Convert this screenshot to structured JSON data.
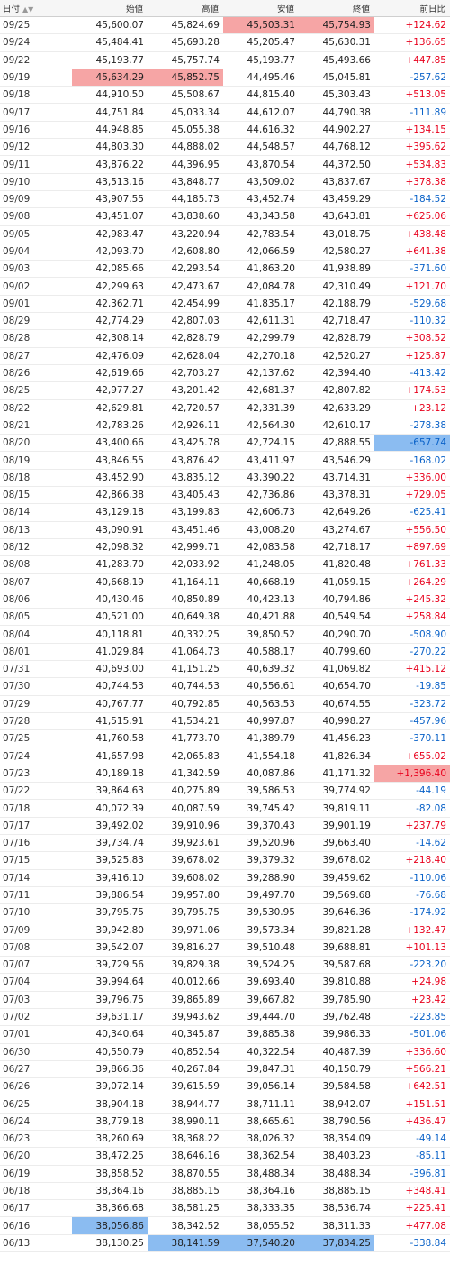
{
  "headers": {
    "date": "日付",
    "open": "始値",
    "high": "高値",
    "low": "安値",
    "close": "終値",
    "change": "前日比"
  },
  "colors": {
    "up": "#e8001c",
    "down": "#0a62c8",
    "highlight_high": "#f6a5a5",
    "highlight_low": "#8bbcf1"
  },
  "rows": [
    {
      "date": "09/25",
      "open": "45,600.07",
      "high": "45,824.69",
      "low": "45,503.31",
      "close": "45,754.93",
      "change": "+124.62",
      "hl": {
        "low": "red",
        "close": "red"
      }
    },
    {
      "date": "09/24",
      "open": "45,484.41",
      "high": "45,693.28",
      "low": "45,205.47",
      "close": "45,630.31",
      "change": "+136.65"
    },
    {
      "date": "09/22",
      "open": "45,193.77",
      "high": "45,757.74",
      "low": "45,193.77",
      "close": "45,493.66",
      "change": "+447.85"
    },
    {
      "date": "09/19",
      "open": "45,634.29",
      "high": "45,852.75",
      "low": "44,495.46",
      "close": "45,045.81",
      "change": "-257.62",
      "hl": {
        "open": "red",
        "high": "red"
      }
    },
    {
      "date": "09/18",
      "open": "44,910.50",
      "high": "45,508.67",
      "low": "44,815.40",
      "close": "45,303.43",
      "change": "+513.05"
    },
    {
      "date": "09/17",
      "open": "44,751.84",
      "high": "45,033.34",
      "low": "44,612.07",
      "close": "44,790.38",
      "change": "-111.89"
    },
    {
      "date": "09/16",
      "open": "44,948.85",
      "high": "45,055.38",
      "low": "44,616.32",
      "close": "44,902.27",
      "change": "+134.15"
    },
    {
      "date": "09/12",
      "open": "44,803.30",
      "high": "44,888.02",
      "low": "44,548.57",
      "close": "44,768.12",
      "change": "+395.62"
    },
    {
      "date": "09/11",
      "open": "43,876.22",
      "high": "44,396.95",
      "low": "43,870.54",
      "close": "44,372.50",
      "change": "+534.83"
    },
    {
      "date": "09/10",
      "open": "43,513.16",
      "high": "43,848.77",
      "low": "43,509.02",
      "close": "43,837.67",
      "change": "+378.38"
    },
    {
      "date": "09/09",
      "open": "43,907.55",
      "high": "44,185.73",
      "low": "43,452.74",
      "close": "43,459.29",
      "change": "-184.52"
    },
    {
      "date": "09/08",
      "open": "43,451.07",
      "high": "43,838.60",
      "low": "43,343.58",
      "close": "43,643.81",
      "change": "+625.06"
    },
    {
      "date": "09/05",
      "open": "42,983.47",
      "high": "43,220.94",
      "low": "42,783.54",
      "close": "43,018.75",
      "change": "+438.48"
    },
    {
      "date": "09/04",
      "open": "42,093.70",
      "high": "42,608.80",
      "low": "42,066.59",
      "close": "42,580.27",
      "change": "+641.38"
    },
    {
      "date": "09/03",
      "open": "42,085.66",
      "high": "42,293.54",
      "low": "41,863.20",
      "close": "41,938.89",
      "change": "-371.60"
    },
    {
      "date": "09/02",
      "open": "42,299.63",
      "high": "42,473.67",
      "low": "42,084.78",
      "close": "42,310.49",
      "change": "+121.70"
    },
    {
      "date": "09/01",
      "open": "42,362.71",
      "high": "42,454.99",
      "low": "41,835.17",
      "close": "42,188.79",
      "change": "-529.68"
    },
    {
      "date": "08/29",
      "open": "42,774.29",
      "high": "42,807.03",
      "low": "42,611.31",
      "close": "42,718.47",
      "change": "-110.32"
    },
    {
      "date": "08/28",
      "open": "42,308.14",
      "high": "42,828.79",
      "low": "42,299.79",
      "close": "42,828.79",
      "change": "+308.52"
    },
    {
      "date": "08/27",
      "open": "42,476.09",
      "high": "42,628.04",
      "low": "42,270.18",
      "close": "42,520.27",
      "change": "+125.87"
    },
    {
      "date": "08/26",
      "open": "42,619.66",
      "high": "42,703.27",
      "low": "42,137.62",
      "close": "42,394.40",
      "change": "-413.42"
    },
    {
      "date": "08/25",
      "open": "42,977.27",
      "high": "43,201.42",
      "low": "42,681.37",
      "close": "42,807.82",
      "change": "+174.53"
    },
    {
      "date": "08/22",
      "open": "42,629.81",
      "high": "42,720.57",
      "low": "42,331.39",
      "close": "42,633.29",
      "change": "+23.12"
    },
    {
      "date": "08/21",
      "open": "42,783.26",
      "high": "42,926.11",
      "low": "42,564.30",
      "close": "42,610.17",
      "change": "-278.38"
    },
    {
      "date": "08/20",
      "open": "43,400.66",
      "high": "43,425.78",
      "low": "42,724.15",
      "close": "42,888.55",
      "change": "-657.74",
      "hl": {
        "change": "blue"
      }
    },
    {
      "date": "08/19",
      "open": "43,846.55",
      "high": "43,876.42",
      "low": "43,411.97",
      "close": "43,546.29",
      "change": "-168.02"
    },
    {
      "date": "08/18",
      "open": "43,452.90",
      "high": "43,835.12",
      "low": "43,390.22",
      "close": "43,714.31",
      "change": "+336.00"
    },
    {
      "date": "08/15",
      "open": "42,866.38",
      "high": "43,405.43",
      "low": "42,736.86",
      "close": "43,378.31",
      "change": "+729.05"
    },
    {
      "date": "08/14",
      "open": "43,129.18",
      "high": "43,199.83",
      "low": "42,606.73",
      "close": "42,649.26",
      "change": "-625.41"
    },
    {
      "date": "08/13",
      "open": "43,090.91",
      "high": "43,451.46",
      "low": "43,008.20",
      "close": "43,274.67",
      "change": "+556.50"
    },
    {
      "date": "08/12",
      "open": "42,098.32",
      "high": "42,999.71",
      "low": "42,083.58",
      "close": "42,718.17",
      "change": "+897.69"
    },
    {
      "date": "08/08",
      "open": "41,283.70",
      "high": "42,033.92",
      "low": "41,248.05",
      "close": "41,820.48",
      "change": "+761.33"
    },
    {
      "date": "08/07",
      "open": "40,668.19",
      "high": "41,164.11",
      "low": "40,668.19",
      "close": "41,059.15",
      "change": "+264.29"
    },
    {
      "date": "08/06",
      "open": "40,430.46",
      "high": "40,850.89",
      "low": "40,423.13",
      "close": "40,794.86",
      "change": "+245.32"
    },
    {
      "date": "08/05",
      "open": "40,521.00",
      "high": "40,649.38",
      "low": "40,421.88",
      "close": "40,549.54",
      "change": "+258.84"
    },
    {
      "date": "08/04",
      "open": "40,118.81",
      "high": "40,332.25",
      "low": "39,850.52",
      "close": "40,290.70",
      "change": "-508.90"
    },
    {
      "date": "08/01",
      "open": "41,029.84",
      "high": "41,064.73",
      "low": "40,588.17",
      "close": "40,799.60",
      "change": "-270.22"
    },
    {
      "date": "07/31",
      "open": "40,693.00",
      "high": "41,151.25",
      "low": "40,639.32",
      "close": "41,069.82",
      "change": "+415.12"
    },
    {
      "date": "07/30",
      "open": "40,744.53",
      "high": "40,744.53",
      "low": "40,556.61",
      "close": "40,654.70",
      "change": "-19.85"
    },
    {
      "date": "07/29",
      "open": "40,767.77",
      "high": "40,792.85",
      "low": "40,563.53",
      "close": "40,674.55",
      "change": "-323.72"
    },
    {
      "date": "07/28",
      "open": "41,515.91",
      "high": "41,534.21",
      "low": "40,997.87",
      "close": "40,998.27",
      "change": "-457.96"
    },
    {
      "date": "07/25",
      "open": "41,760.58",
      "high": "41,773.70",
      "low": "41,389.79",
      "close": "41,456.23",
      "change": "-370.11"
    },
    {
      "date": "07/24",
      "open": "41,657.98",
      "high": "42,065.83",
      "low": "41,554.18",
      "close": "41,826.34",
      "change": "+655.02"
    },
    {
      "date": "07/23",
      "open": "40,189.18",
      "high": "41,342.59",
      "low": "40,087.86",
      "close": "41,171.32",
      "change": "+1,396.40",
      "hl": {
        "change": "red"
      }
    },
    {
      "date": "07/22",
      "open": "39,864.63",
      "high": "40,275.89",
      "low": "39,586.53",
      "close": "39,774.92",
      "change": "-44.19"
    },
    {
      "date": "07/18",
      "open": "40,072.39",
      "high": "40,087.59",
      "low": "39,745.42",
      "close": "39,819.11",
      "change": "-82.08"
    },
    {
      "date": "07/17",
      "open": "39,492.02",
      "high": "39,910.96",
      "low": "39,370.43",
      "close": "39,901.19",
      "change": "+237.79"
    },
    {
      "date": "07/16",
      "open": "39,734.74",
      "high": "39,923.61",
      "low": "39,520.96",
      "close": "39,663.40",
      "change": "-14.62"
    },
    {
      "date": "07/15",
      "open": "39,525.83",
      "high": "39,678.02",
      "low": "39,379.32",
      "close": "39,678.02",
      "change": "+218.40"
    },
    {
      "date": "07/14",
      "open": "39,416.10",
      "high": "39,608.02",
      "low": "39,288.90",
      "close": "39,459.62",
      "change": "-110.06"
    },
    {
      "date": "07/11",
      "open": "39,886.54",
      "high": "39,957.80",
      "low": "39,497.70",
      "close": "39,569.68",
      "change": "-76.68"
    },
    {
      "date": "07/10",
      "open": "39,795.75",
      "high": "39,795.75",
      "low": "39,530.95",
      "close": "39,646.36",
      "change": "-174.92"
    },
    {
      "date": "07/09",
      "open": "39,942.80",
      "high": "39,971.06",
      "low": "39,573.34",
      "close": "39,821.28",
      "change": "+132.47"
    },
    {
      "date": "07/08",
      "open": "39,542.07",
      "high": "39,816.27",
      "low": "39,510.48",
      "close": "39,688.81",
      "change": "+101.13"
    },
    {
      "date": "07/07",
      "open": "39,729.56",
      "high": "39,829.38",
      "low": "39,524.25",
      "close": "39,587.68",
      "change": "-223.20"
    },
    {
      "date": "07/04",
      "open": "39,994.64",
      "high": "40,012.66",
      "low": "39,693.40",
      "close": "39,810.88",
      "change": "+24.98"
    },
    {
      "date": "07/03",
      "open": "39,796.75",
      "high": "39,865.89",
      "low": "39,667.82",
      "close": "39,785.90",
      "change": "+23.42"
    },
    {
      "date": "07/02",
      "open": "39,631.17",
      "high": "39,943.62",
      "low": "39,444.70",
      "close": "39,762.48",
      "change": "-223.85"
    },
    {
      "date": "07/01",
      "open": "40,340.64",
      "high": "40,345.87",
      "low": "39,885.38",
      "close": "39,986.33",
      "change": "-501.06"
    },
    {
      "date": "06/30",
      "open": "40,550.79",
      "high": "40,852.54",
      "low": "40,322.54",
      "close": "40,487.39",
      "change": "+336.60"
    },
    {
      "date": "06/27",
      "open": "39,866.36",
      "high": "40,267.84",
      "low": "39,847.31",
      "close": "40,150.79",
      "change": "+566.21"
    },
    {
      "date": "06/26",
      "open": "39,072.14",
      "high": "39,615.59",
      "low": "39,056.14",
      "close": "39,584.58",
      "change": "+642.51"
    },
    {
      "date": "06/25",
      "open": "38,904.18",
      "high": "38,944.77",
      "low": "38,711.11",
      "close": "38,942.07",
      "change": "+151.51"
    },
    {
      "date": "06/24",
      "open": "38,779.18",
      "high": "38,990.11",
      "low": "38,665.61",
      "close": "38,790.56",
      "change": "+436.47"
    },
    {
      "date": "06/23",
      "open": "38,260.69",
      "high": "38,368.22",
      "low": "38,026.32",
      "close": "38,354.09",
      "change": "-49.14"
    },
    {
      "date": "06/20",
      "open": "38,472.25",
      "high": "38,646.16",
      "low": "38,362.54",
      "close": "38,403.23",
      "change": "-85.11"
    },
    {
      "date": "06/19",
      "open": "38,858.52",
      "high": "38,870.55",
      "low": "38,488.34",
      "close": "38,488.34",
      "change": "-396.81"
    },
    {
      "date": "06/18",
      "open": "38,364.16",
      "high": "38,885.15",
      "low": "38,364.16",
      "close": "38,885.15",
      "change": "+348.41"
    },
    {
      "date": "06/17",
      "open": "38,366.68",
      "high": "38,581.25",
      "low": "38,333.35",
      "close": "38,536.74",
      "change": "+225.41"
    },
    {
      "date": "06/16",
      "open": "38,056.86",
      "high": "38,342.52",
      "low": "38,055.52",
      "close": "38,311.33",
      "change": "+477.08",
      "hl": {
        "open": "blue"
      }
    },
    {
      "date": "06/13",
      "open": "38,130.25",
      "high": "38,141.59",
      "low": "37,540.20",
      "close": "37,834.25",
      "change": "-338.84",
      "hl": {
        "high": "blue",
        "low": "blue",
        "close": "blue"
      }
    }
  ]
}
